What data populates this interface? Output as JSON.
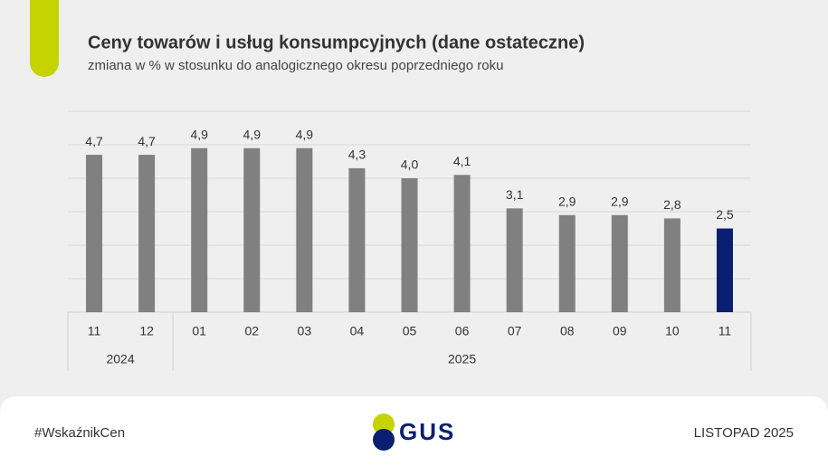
{
  "chart_data": {
    "type": "bar",
    "title": "Ceny towarów i usług konsumpcyjnych (dane ostateczne)",
    "subtitle": "zmiana w % w stosunku do analogicznego okresu poprzedniego roku",
    "categories": [
      "11",
      "12",
      "01",
      "02",
      "03",
      "04",
      "05",
      "06",
      "07",
      "08",
      "09",
      "10",
      "11"
    ],
    "values": [
      4.7,
      4.7,
      4.9,
      4.9,
      4.9,
      4.3,
      4.0,
      4.1,
      3.1,
      2.9,
      2.9,
      2.8,
      2.5
    ],
    "value_labels": [
      "4,7",
      "4,7",
      "4,9",
      "4,9",
      "4,9",
      "4,3",
      "4,0",
      "4,1",
      "3,1",
      "2,9",
      "2,9",
      "2,8",
      "2,5"
    ],
    "colors": [
      "#808080",
      "#808080",
      "#808080",
      "#808080",
      "#808080",
      "#808080",
      "#808080",
      "#808080",
      "#808080",
      "#808080",
      "#808080",
      "#808080",
      "#0b1f70"
    ],
    "groups": [
      {
        "label": "2024",
        "span": 2
      },
      {
        "label": "2025",
        "span": 11
      }
    ],
    "ylim": [
      0,
      6
    ],
    "yticks": [
      0,
      1,
      2,
      3,
      4,
      5,
      6
    ],
    "grid": true
  },
  "footer": {
    "hashtag": "#WskaźnikCen",
    "logo": "GUS",
    "date": "LISTOPAD 2025"
  }
}
